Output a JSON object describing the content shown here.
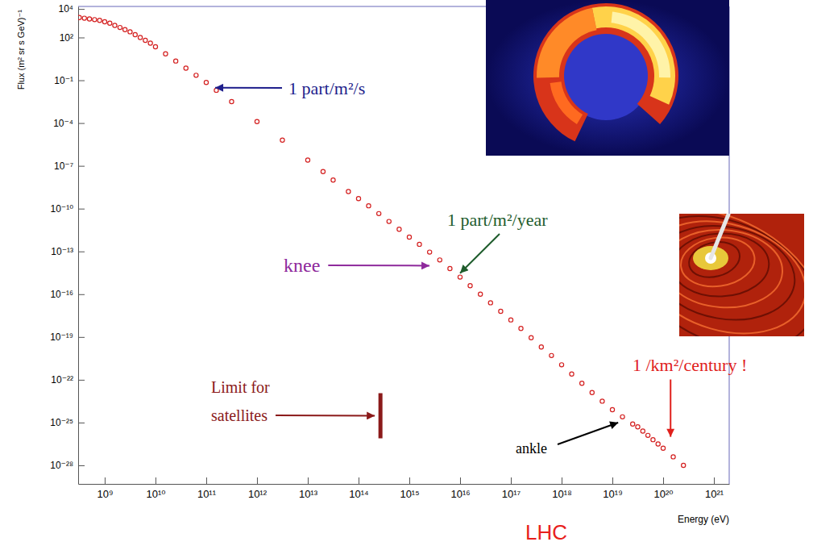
{
  "chart_data": {
    "type": "scatter",
    "x_label": "Energy (eV)",
    "y_label": "Flux (m² sr s GeV)⁻¹",
    "log": true,
    "grid": false,
    "marker": "circle",
    "color": "#d42020",
    "x": [
      316000000.0,
      398000000.0,
      501000000.0,
      631000000.0,
      794000000.0,
      1000000000.0,
      1260000000.0,
      1580000000.0,
      2000000000.0,
      2510000000.0,
      3160000000.0,
      3980000000.0,
      5010000000.0,
      6310000000.0,
      7940000000.0,
      10000000000.0,
      15800000000.0,
      25100000000.0,
      39800000000.0,
      63100000000.0,
      100000000000.0,
      158000000000.0,
      316000000000.0,
      1000000000000.0,
      3160000000000.0,
      10000000000000.0,
      20000000000000.0,
      31600000000000.0,
      63100000000000.0,
      100000000000000.0,
      158000000000000.0,
      251000000000000.0,
      398000000000000.0,
      631000000000000.0,
      1000000000000000.0,
      1580000000000000.0,
      2510000000000000.0,
      3980000000000000.0,
      6310000000000000.0,
      1e+16,
      1.58e+16,
      2.51e+16,
      3.98e+16,
      6.31e+16,
      1e+17,
      1.58e+17,
      2.51e+17,
      3.98e+17,
      6.31e+17,
      1e+18,
      1.58e+18,
      2.51e+18,
      3.98e+18,
      6.31e+18,
      1e+19,
      1.58e+19,
      2.51e+19,
      3.16e+19,
      3.98e+19,
      5.01e+19,
      6.31e+19,
      7.94e+19,
      1e+20,
      1.58e+20,
      2.51e+20
    ],
    "values": [
      2510.0,
      2240.0,
      2000.0,
      1780.0,
      1580.0,
      1260.0,
      1000.0,
      708,
      501,
      355,
      251,
      158,
      100,
      63.1,
      39.8,
      22.4,
      7.08,
      2.24,
      0.708,
      0.224,
      0.0708,
      0.02,
      0.00316,
      0.000126,
      6.31e-06,
      2.51e-07,
      3.98e-08,
      1e-08,
      1.58e-09,
      5.01e-10,
      1.58e-10,
      4.47e-11,
      1.26e-11,
      3.55e-12,
      1e-12,
      3.16e-13,
      8.91e-14,
      2.51e-14,
      6.31e-15,
      1.58e-15,
      3.98e-16,
      1e-16,
      2.51e-17,
      6.31e-18,
      1.58e-18,
      3.98e-19,
      8.91e-20,
      2e-20,
      5.01e-21,
      1.12e-21,
      2.51e-22,
      5.62e-23,
      1.26e-23,
      3.16e-24,
      7.94e-25,
      2.51e-25,
      7.94e-26,
      5.01e-26,
      2.51e-26,
      1.26e-26,
      6.31e-27,
      3.16e-27,
      1.58e-27,
      3.98e-28,
      1e-28
    ],
    "xlim": [
      300000000.0,
      2e+21
    ],
    "ylim": [
      5e-30,
      15000.0
    ],
    "xticks": [
      {
        "value": 1000000000.0,
        "label": "10⁹"
      },
      {
        "value": 10000000000.0,
        "label": "10¹⁰"
      },
      {
        "value": 100000000000.0,
        "label": "10¹¹"
      },
      {
        "value": 1000000000000.0,
        "label": "10¹²"
      },
      {
        "value": 10000000000000.0,
        "label": "10¹³"
      },
      {
        "value": 100000000000000.0,
        "label": "10¹⁴"
      },
      {
        "value": 1000000000000000.0,
        "label": "10¹⁵"
      },
      {
        "value": 1e+16,
        "label": "10¹⁶"
      },
      {
        "value": 1e+17,
        "label": "10¹⁷"
      },
      {
        "value": 1e+18,
        "label": "10¹⁸"
      },
      {
        "value": 1e+19,
        "label": "10¹⁹"
      },
      {
        "value": 1e+20,
        "label": "10²⁰"
      },
      {
        "value": 1e+21,
        "label": "10²¹"
      }
    ],
    "yticks": [
      {
        "value": 10000.0,
        "label": "10⁴"
      },
      {
        "value": 100.0,
        "label": "10²"
      },
      {
        "value": 0.1,
        "label": "10⁻¹"
      },
      {
        "value": 0.0001,
        "label": "10⁻⁴"
      },
      {
        "value": 1e-07,
        "label": "10⁻⁷"
      },
      {
        "value": 1e-10,
        "label": "10⁻¹⁰"
      },
      {
        "value": 1e-13,
        "label": "10⁻¹³"
      },
      {
        "value": 1e-16,
        "label": "10⁻¹⁶"
      },
      {
        "value": 1e-19,
        "label": "10⁻¹⁹"
      },
      {
        "value": 1e-22,
        "label": "10⁻²²"
      },
      {
        "value": 1e-25,
        "label": "10⁻²⁵"
      },
      {
        "value": 1e-28,
        "label": "10⁻²⁸"
      }
    ],
    "annotations": [
      {
        "text": "1 part/m²/s",
        "x": 150000000000.0,
        "y": 0.03,
        "color": "#1f1f8c",
        "marker": "arrow"
      },
      {
        "text": "1 part/m²/year",
        "x": 1e+16,
        "y": 3e-15,
        "color": "#1e5c2c",
        "marker": "arrow"
      },
      {
        "text": "knee",
        "x": 2500000000000000.0,
        "y": 1e-14,
        "color": "#8e2a9c",
        "marker": "arrow"
      },
      {
        "text": "Limit for satellites",
        "x": 270000000000000.0,
        "y": 3e-25,
        "color": "#8b1a1a",
        "marker": "bar"
      },
      {
        "text": "ankle",
        "x": 1.3e+19,
        "y": 1e-25,
        "color": "#000000",
        "marker": "arrow"
      },
      {
        "text": "1 /km²/century !",
        "x": 1.4e+20,
        "y": 1e-26,
        "color": "#e0201c",
        "marker": "arrow"
      },
      {
        "text": "LHC",
        "x": 5e+17,
        "color": "#e8201c"
      }
    ]
  }
}
